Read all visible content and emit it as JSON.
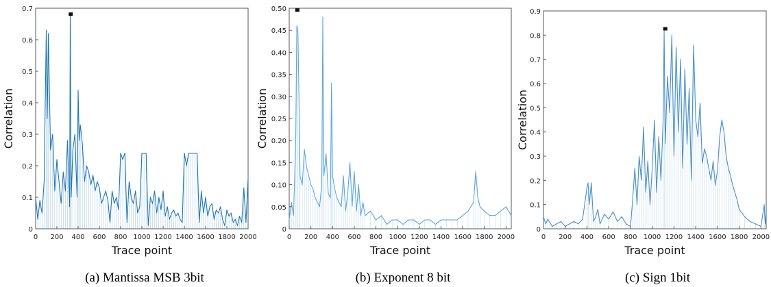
{
  "chart_data": [
    {
      "type": "line",
      "xlabel": "Trace point",
      "ylabel": "Correlation",
      "caption": "(a) Mantissa MSB 3bit",
      "xlim": [
        0,
        2000
      ],
      "ylim": [
        0,
        0.7
      ],
      "xticks": [
        "0",
        "200",
        "400",
        "600",
        "800",
        "1000",
        "1200",
        "1400",
        "1600",
        "1800",
        "2000"
      ],
      "yticks": [
        "0",
        "0.1",
        "0.2",
        "0.3",
        "0.4",
        "0.5",
        "0.6",
        "0.7"
      ],
      "color": "#1f77b4",
      "series": [
        {
          "x": [
            0,
            20,
            40,
            60,
            80,
            100,
            110,
            120,
            140,
            160,
            180,
            200,
            220,
            240,
            260,
            280,
            300,
            320,
            326,
            335,
            350,
            370,
            390,
            400,
            410,
            420,
            440,
            460,
            480,
            500,
            520,
            540,
            560,
            580,
            600,
            620,
            640,
            660,
            680,
            700,
            720,
            740,
            760,
            780,
            800,
            820,
            840,
            860,
            880,
            900,
            920,
            940,
            960,
            980,
            1000,
            1020,
            1040,
            1060,
            1080,
            1100,
            1120,
            1140,
            1160,
            1180,
            1200,
            1220,
            1240,
            1260,
            1280,
            1300,
            1320,
            1340,
            1360,
            1380,
            1400,
            1420,
            1440,
            1460,
            1480,
            1500,
            1520,
            1540,
            1560,
            1580,
            1600,
            1620,
            1640,
            1660,
            1680,
            1700,
            1720,
            1740,
            1760,
            1780,
            1800,
            1820,
            1840,
            1860,
            1880,
            1900,
            1920,
            1940,
            1960,
            1980,
            2000
          ],
          "y": [
            0.1,
            0.03,
            0.09,
            0.05,
            0.15,
            0.63,
            0.35,
            0.62,
            0.25,
            0.3,
            0.12,
            0.22,
            0.15,
            0.08,
            0.18,
            0.12,
            0.28,
            0.07,
            0.68,
            0.1,
            0.25,
            0.3,
            0.1,
            0.44,
            0.28,
            0.33,
            0.27,
            0.15,
            0.2,
            0.18,
            0.14,
            0.17,
            0.12,
            0.15,
            0.13,
            0.08,
            0.1,
            0.12,
            0.09,
            0.02,
            0.12,
            0.08,
            0.1,
            0.06,
            0.24,
            0.22,
            0.24,
            0.02,
            0.15,
            0.1,
            0.08,
            0.12,
            0.05,
            0.07,
            0.24,
            0.24,
            0.24,
            0.01,
            0.1,
            0.08,
            0.12,
            0.05,
            0.1,
            0.06,
            0.12,
            0.04,
            0.07,
            0.03,
            0.05,
            0.06,
            0.04,
            0.05,
            0.03,
            0.02,
            0.24,
            0.2,
            0.24,
            0.24,
            0.24,
            0.24,
            0.24,
            0.02,
            0.12,
            0.05,
            0.1,
            0.04,
            0.07,
            0.08,
            0.03,
            0.06,
            0.05,
            0.07,
            0.03,
            0.01,
            0.06,
            0.04,
            0.05,
            0.02,
            0.03,
            0.01,
            0.04,
            0.02,
            0.13,
            0.02,
            0.16
          ]
        }
      ],
      "marker": {
        "x": 330,
        "y": 0.68
      }
    },
    {
      "type": "line",
      "xlabel": "Trace point",
      "ylabel": "Correlation",
      "caption": "(b) Exponent 8 bit",
      "xlim": [
        0,
        2048
      ],
      "ylim": [
        0,
        0.5
      ],
      "xticks": [
        "0",
        "200",
        "400",
        "600",
        "800",
        "1000",
        "1200",
        "1400",
        "1600",
        "1800",
        "2000"
      ],
      "yticks": [
        "0",
        "0.05",
        "0.10",
        "0.15",
        "0.20",
        "0.25",
        "0.30",
        "0.35",
        "0.40",
        "0.45",
        "0.50"
      ],
      "color": "#5da7de",
      "series": [
        {
          "x": [
            0,
            20,
            40,
            60,
            70,
            80,
            90,
            100,
            120,
            140,
            160,
            180,
            200,
            220,
            240,
            260,
            280,
            300,
            310,
            320,
            340,
            360,
            380,
            390,
            400,
            420,
            440,
            460,
            480,
            500,
            520,
            540,
            560,
            580,
            600,
            620,
            640,
            660,
            680,
            700,
            750,
            800,
            850,
            900,
            950,
            1000,
            1050,
            1100,
            1150,
            1200,
            1250,
            1300,
            1350,
            1400,
            1450,
            1500,
            1550,
            1600,
            1650,
            1700,
            1720,
            1740,
            1760,
            1800,
            1850,
            1900,
            1950,
            2000,
            2048
          ],
          "y": [
            0.02,
            0.06,
            0.03,
            0.2,
            0.46,
            0.45,
            0.3,
            0.12,
            0.1,
            0.18,
            0.14,
            0.12,
            0.1,
            0.09,
            0.07,
            0.06,
            0.05,
            0.1,
            0.48,
            0.12,
            0.17,
            0.08,
            0.07,
            0.33,
            0.12,
            0.09,
            0.07,
            0.06,
            0.05,
            0.12,
            0.04,
            0.08,
            0.15,
            0.05,
            0.13,
            0.04,
            0.1,
            0.03,
            0.06,
            0.03,
            0.04,
            0.02,
            0.03,
            0.01,
            0.02,
            0.02,
            0.01,
            0.02,
            0.02,
            0.01,
            0.02,
            0.02,
            0.01,
            0.02,
            0.02,
            0.02,
            0.02,
            0.03,
            0.04,
            0.06,
            0.13,
            0.07,
            0.05,
            0.04,
            0.03,
            0.03,
            0.04,
            0.05,
            0.03
          ]
        }
      ],
      "marker": {
        "x": 75,
        "y": 0.495
      }
    },
    {
      "type": "line",
      "xlabel": "Trace point",
      "ylabel": "Correlation",
      "caption": "(c) Sign 1bit",
      "xlim": [
        0,
        2048
      ],
      "ylim": [
        0,
        0.9
      ],
      "xticks": [
        "0",
        "200",
        "400",
        "600",
        "800",
        "1000",
        "1200",
        "1400",
        "1600",
        "1800",
        "2000"
      ],
      "yticks": [
        "0",
        "0.1",
        "0.2",
        "0.3",
        "0.4",
        "0.5",
        "0.6",
        "0.7",
        "0.8",
        "0.9"
      ],
      "color": "#4a90c8",
      "series": [
        {
          "x": [
            0,
            20,
            40,
            80,
            120,
            160,
            200,
            240,
            280,
            320,
            360,
            400,
            410,
            420,
            440,
            460,
            480,
            500,
            520,
            560,
            600,
            640,
            680,
            720,
            760,
            800,
            820,
            840,
            860,
            880,
            900,
            920,
            940,
            960,
            980,
            1000,
            1020,
            1040,
            1060,
            1080,
            1100,
            1110,
            1120,
            1140,
            1160,
            1180,
            1200,
            1220,
            1240,
            1260,
            1280,
            1300,
            1320,
            1340,
            1360,
            1380,
            1400,
            1420,
            1440,
            1460,
            1480,
            1500,
            1520,
            1540,
            1560,
            1580,
            1600,
            1620,
            1640,
            1660,
            1680,
            1700,
            1720,
            1740,
            1760,
            1780,
            1800,
            1850,
            1900,
            1950,
            2000,
            2030,
            2040,
            2048
          ],
          "y": [
            0.05,
            0.02,
            0.04,
            0.01,
            0.02,
            0.03,
            0.01,
            0.02,
            0.03,
            0.02,
            0.04,
            0.17,
            0.19,
            0.1,
            0.19,
            0.03,
            0.05,
            0.08,
            0.02,
            0.06,
            0.04,
            0.07,
            0.03,
            0.05,
            0.02,
            0.01,
            0.12,
            0.25,
            0.1,
            0.3,
            0.2,
            0.42,
            0.15,
            0.28,
            0.1,
            0.25,
            0.45,
            0.15,
            0.38,
            0.2,
            0.45,
            0.82,
            0.35,
            0.63,
            0.48,
            0.8,
            0.3,
            0.75,
            0.4,
            0.7,
            0.25,
            0.66,
            0.35,
            0.58,
            0.2,
            0.76,
            0.45,
            0.38,
            0.52,
            0.27,
            0.33,
            0.3,
            0.25,
            0.2,
            0.28,
            0.18,
            0.24,
            0.38,
            0.45,
            0.4,
            0.3,
            0.25,
            0.22,
            0.18,
            0.15,
            0.12,
            0.08,
            0.05,
            0.03,
            0.02,
            0.01,
            0.1,
            0.02,
            0.07
          ]
        }
      ],
      "marker": {
        "x": 1120,
        "y": 0.825
      }
    }
  ]
}
